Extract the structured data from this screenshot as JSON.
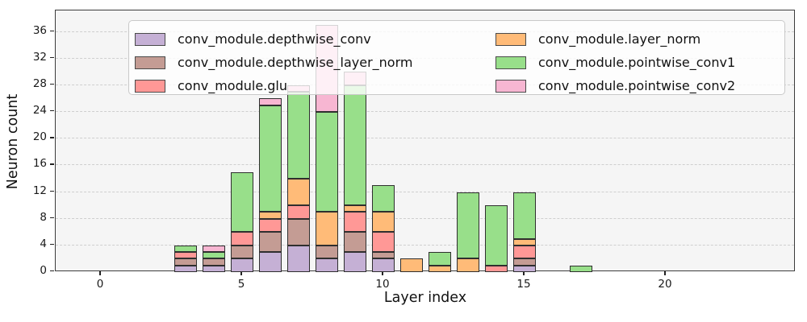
{
  "figure": {
    "background": "#ffffff",
    "plot_background": "#f5f5f5",
    "grid_color": "#cfcfcf",
    "spine_color": "#3c3c3c",
    "bar_edge_color": "#2f2f2f",
    "legend_background": "rgba(255,255,255,0.8)"
  },
  "chart_data": {
    "type": "bar",
    "stacked": true,
    "title": "",
    "xlabel": "Layer index",
    "ylabel": "Neuron count",
    "x_tick_values": [
      0,
      5,
      10,
      15,
      20
    ],
    "y_tick_values": [
      0,
      4,
      8,
      12,
      16,
      20,
      24,
      28,
      32,
      36
    ],
    "xlim": [
      -1.6,
      24.6
    ],
    "ylim": [
      0,
      39.2
    ],
    "bar_width": 0.8,
    "grid": "horizontal-dashed",
    "legend": {
      "position": "upper center",
      "columns": 2,
      "entries_column_major": true
    },
    "categories": [
      3,
      4,
      5,
      6,
      7,
      8,
      9,
      10,
      11,
      12,
      13,
      14,
      15,
      17
    ],
    "series": [
      {
        "name": "conv_module.depthwise_conv",
        "color": "#c5b0d5",
        "values": [
          1,
          1,
          2,
          3,
          4,
          2,
          3,
          2,
          0,
          0,
          0,
          0,
          1,
          0
        ]
      },
      {
        "name": "conv_module.depthwise_layer_norm",
        "color": "#c49c94",
        "values": [
          1,
          1,
          2,
          3,
          4,
          2,
          3,
          1,
          0,
          0,
          0,
          0,
          1,
          0
        ]
      },
      {
        "name": "conv_module.glu",
        "color": "#ff9896",
        "values": [
          1,
          0,
          2,
          2,
          2,
          0,
          3,
          3,
          0,
          0,
          0,
          1,
          2,
          0
        ]
      },
      {
        "name": "conv_module.layer_norm",
        "color": "#ffbb78",
        "values": [
          0,
          0,
          0,
          1,
          4,
          5,
          1,
          3,
          2,
          1,
          2,
          0,
          1,
          0
        ]
      },
      {
        "name": "conv_module.pointwise_conv1",
        "color": "#98df8a",
        "values": [
          1,
          1,
          9,
          16,
          13,
          15,
          18,
          4,
          0,
          2,
          10,
          9,
          7,
          1
        ]
      },
      {
        "name": "conv_module.pointwise_conv2",
        "color": "#f7b6d2",
        "values": [
          0,
          1,
          0,
          1,
          1,
          13,
          2,
          0,
          0,
          0,
          0,
          0,
          0,
          0
        ]
      }
    ]
  }
}
